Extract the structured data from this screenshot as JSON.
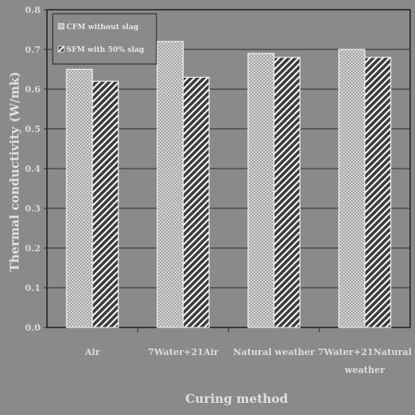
{
  "chart_data": {
    "type": "bar",
    "title": "",
    "xlabel": "Curing method",
    "ylabel": "Thermal conductivity (W/mk)",
    "ylim": [
      0,
      0.8
    ],
    "yticks": [
      "0.0",
      "0.1",
      "0.2",
      "0.3",
      "0.4",
      "0.5",
      "0.6",
      "0.7",
      "0.8"
    ],
    "grid": true,
    "legend_position": "top-left",
    "categories": [
      [
        "Air"
      ],
      [
        "7Water+21Air"
      ],
      [
        "Natural weather"
      ],
      [
        "7Water+21Natural",
        "weather"
      ]
    ],
    "series": [
      {
        "name": "CFM without slag",
        "pattern": "crosshatch",
        "values": [
          0.65,
          0.72,
          0.69,
          0.7
        ]
      },
      {
        "name": "SFM with 50% slag",
        "pattern": "diagonal",
        "values": [
          0.62,
          0.63,
          0.68,
          0.68
        ]
      }
    ],
    "colors": {
      "background": "#8a8a8a",
      "bar_fill": "#9a9a9a",
      "bar_stroke": "#f0f0f0",
      "grid": "#2a2a2a",
      "text": "#d8d8d8"
    }
  }
}
